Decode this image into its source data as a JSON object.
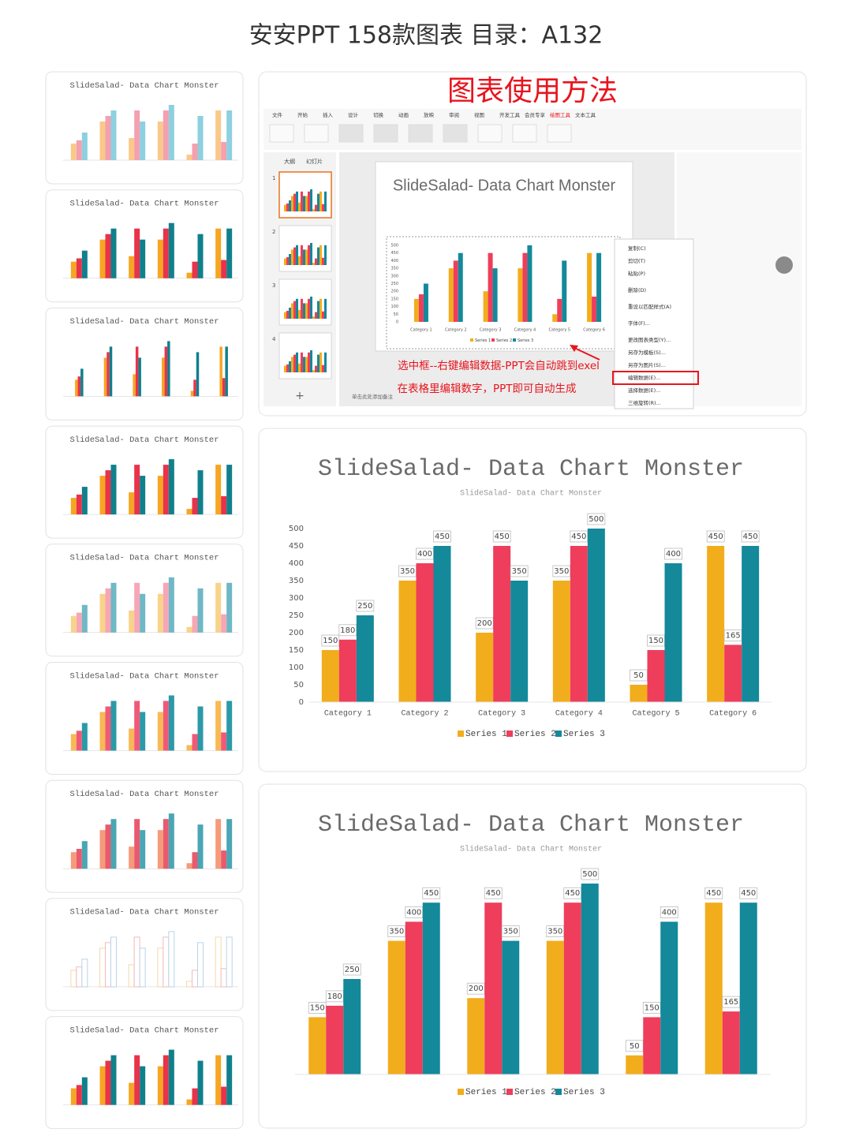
{
  "header": {
    "title": "安安PPT 158款图表 目录：A132"
  },
  "thumbnails": {
    "palettes": [
      [
        "#f9c98a",
        "#f4a0b0",
        "#8dd0e0"
      ],
      [
        "#f5a623",
        "#e8334a",
        "#10808c"
      ],
      [
        "#f5a623",
        "#e8334a",
        "#10808c"
      ],
      [
        "#f5a623",
        "#e8334a",
        "#10808c"
      ],
      [
        "#f8d38a",
        "#f7a6b5",
        "#6fb8c6"
      ],
      [
        "#f7b955",
        "#f05a78",
        "#2a9aa8"
      ],
      [
        "#f59b7a",
        "#e85b6e",
        "#4aa6b4"
      ],
      [
        "#f3d9a8",
        "#f5b8b8",
        "#b8d4e8"
      ],
      [
        "#f5a623",
        "#e8334a",
        "#10808c"
      ]
    ]
  },
  "tutorial": {
    "title": "图表使用方法",
    "tabs": [
      "文件",
      "开始",
      "插入",
      "设计",
      "切换",
      "动画",
      "放映",
      "审阅",
      "视图",
      "开发工具",
      "会员专享",
      "绘图工具",
      "文本工具"
    ],
    "panes": [
      "大纲",
      "幻灯片"
    ],
    "slides": [
      "1",
      "2",
      "3",
      "4"
    ],
    "slide_title": "SlideSalad- Data Chart Monster",
    "menu": [
      "复制(C)",
      "剪切(T)",
      "粘贴(P)",
      "删除(D)",
      "重设以匹配样式(A)",
      "字体(F)...",
      "更改图表类型(Y)...",
      "另存为模板(S)...",
      "另存为图片(S)...",
      "编辑数据(E)...",
      "选择数据(E)...",
      "三维旋转(R)..."
    ],
    "notes": [
      "选中框--右键编辑数据-PPT会自动跳到exel",
      "在表格里编辑数字，PPT即可自动生成"
    ],
    "add_note": "单击此处添加备注"
  },
  "chart_data": [
    {
      "type": "bar",
      "title": "SlideSalad- Data Chart Monster",
      "subtitle": "SlideSalad- Data Chart Monster",
      "categories": [
        "Category 1",
        "Category 2",
        "Category 3",
        "Category 4",
        "Category 5",
        "Category 6"
      ],
      "series": [
        {
          "name": "Series 1",
          "color": "#f2ad1c",
          "values": [
            150,
            350,
            200,
            350,
            50,
            450
          ]
        },
        {
          "name": "Series 2",
          "color": "#ef3d5c",
          "values": [
            180,
            400,
            450,
            450,
            150,
            165
          ]
        },
        {
          "name": "Series 3",
          "color": "#13899a",
          "values": [
            250,
            450,
            350,
            500,
            400,
            450
          ]
        }
      ],
      "ylim": [
        0,
        500
      ],
      "yticks": [
        0,
        50,
        100,
        150,
        200,
        250,
        300,
        350,
        400,
        450,
        500
      ],
      "legend": "bottom"
    },
    {
      "type": "bar",
      "title": "SlideSalad- Data Chart Monster",
      "subtitle": "SlideSalad- Data Chart Monster",
      "series": [
        {
          "name": "Series 1",
          "color": "#f2ad1c",
          "values": [
            150,
            350,
            200,
            350,
            50,
            450
          ]
        },
        {
          "name": "Series 2",
          "color": "#ef3d5c",
          "values": [
            180,
            400,
            450,
            450,
            150,
            165
          ]
        },
        {
          "name": "Series 3",
          "color": "#13899a",
          "values": [
            250,
            450,
            350,
            500,
            400,
            450
          ]
        }
      ],
      "ylim": [
        0,
        500
      ],
      "legend": "bottom"
    }
  ]
}
